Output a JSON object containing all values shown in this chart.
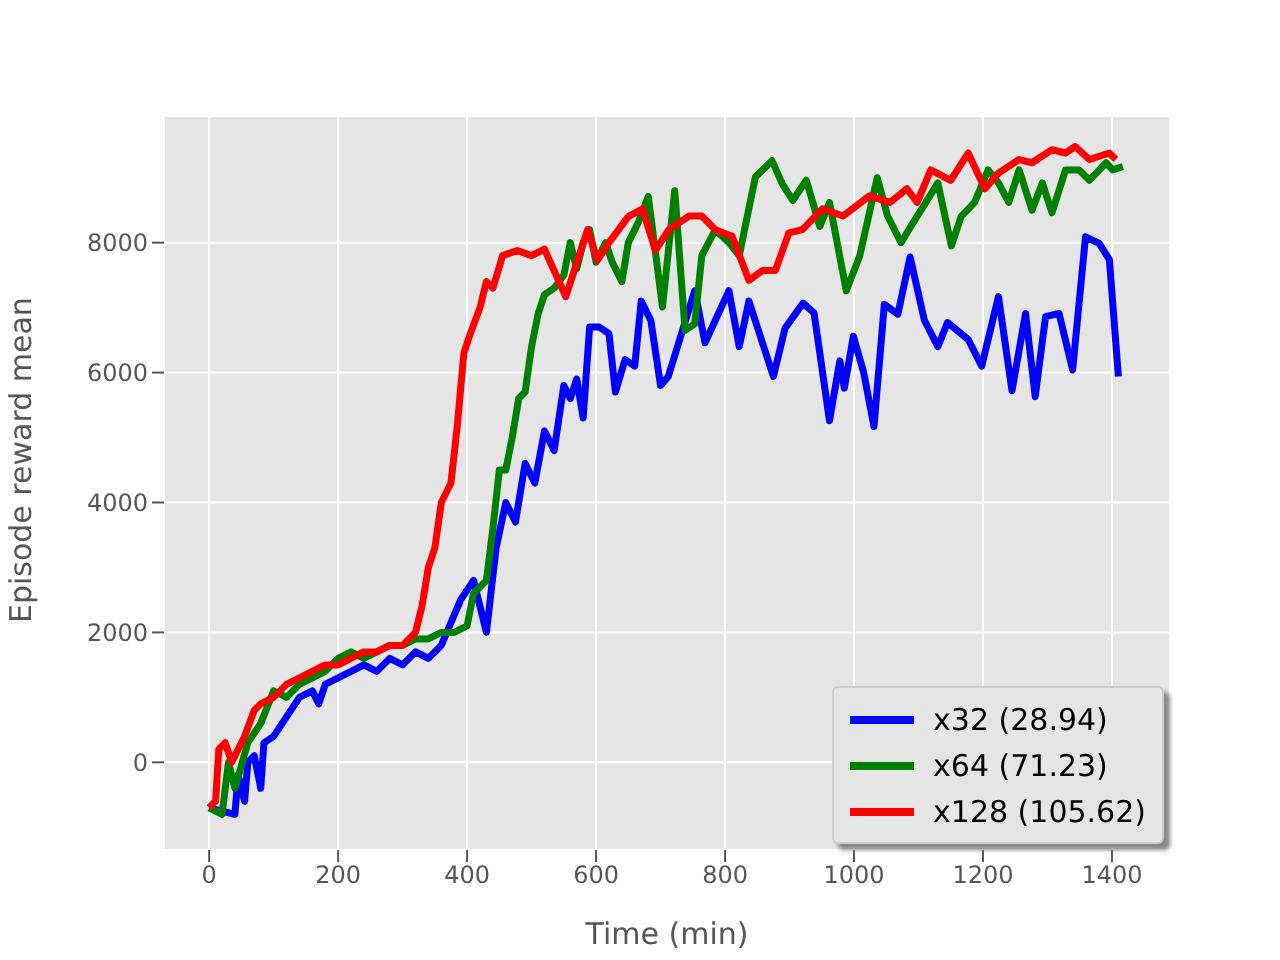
{
  "chart_data": {
    "type": "line",
    "xlabel": "Time (min)",
    "ylabel": "Episode reward mean",
    "xlim": [
      -70,
      1490
    ],
    "ylim": [
      -1350,
      9950
    ],
    "xticks": [
      0,
      200,
      400,
      600,
      800,
      1000,
      1200,
      1400
    ],
    "yticks": [
      0,
      2000,
      4000,
      6000,
      8000
    ],
    "grid": true,
    "legend": "bottom right",
    "marker": "none",
    "line_style": "solid",
    "series": [
      {
        "name": "x32 (28.94)",
        "color": "#0000ff",
        "x": [
          0,
          20,
          40,
          45,
          55,
          60,
          70,
          80,
          85,
          100,
          120,
          140,
          160,
          170,
          180,
          200,
          220,
          240,
          260,
          280,
          300,
          320,
          340,
          360,
          390,
          410,
          430,
          445,
          460,
          475,
          490,
          505,
          520,
          535,
          550,
          560,
          570,
          580,
          590,
          605,
          620,
          630,
          645,
          660,
          670,
          685,
          700,
          712,
          753,
          769,
          806,
          822,
          837,
          875,
          893,
          921,
          938,
          962,
          978,
          985,
          999,
          1015,
          1031,
          1047,
          1068,
          1087,
          1109,
          1130,
          1145,
          1177,
          1198,
          1224,
          1245,
          1266,
          1281,
          1297,
          1318,
          1339,
          1359,
          1380,
          1396,
          1410
        ],
        "values": [
          -700,
          -750,
          -800,
          -200,
          -600,
          0,
          100,
          -400,
          300,
          400,
          700,
          1000,
          1100,
          900,
          1200,
          1300,
          1400,
          1500,
          1400,
          1600,
          1500,
          1700,
          1600,
          1800,
          2500,
          2800,
          2000,
          3300,
          4000,
          3700,
          4600,
          4300,
          5100,
          4800,
          5800,
          5600,
          5900,
          5300,
          6700,
          6700,
          6600,
          5700,
          6200,
          6100,
          7100,
          6800,
          5800,
          5940,
          7260,
          6460,
          7260,
          6400,
          7100,
          5940,
          6680,
          7070,
          6920,
          5260,
          6180,
          5760,
          6560,
          6000,
          5170,
          7050,
          6900,
          7780,
          6810,
          6400,
          6770,
          6510,
          6100,
          7170,
          5720,
          6910,
          5630,
          6860,
          6910,
          6040,
          8090,
          7990,
          7740,
          5940
        ]
      },
      {
        "name": "x64 (71.23)",
        "color": "#008000",
        "x": [
          0,
          20,
          30,
          40,
          60,
          80,
          100,
          120,
          140,
          160,
          180,
          200,
          220,
          240,
          260,
          280,
          300,
          320,
          340,
          360,
          380,
          400,
          410,
          430,
          440,
          450,
          460,
          470,
          480,
          490,
          500,
          510,
          520,
          535,
          550,
          560,
          570,
          580,
          590,
          600,
          615,
          625,
          640,
          650,
          665,
          681,
          703,
          722,
          738,
          753,
          764,
          785,
          806,
          822,
          847,
          873,
          889,
          905,
          926,
          947,
          962,
          988,
          1009,
          1036,
          1052,
          1073,
          1088,
          1104,
          1130,
          1151,
          1166,
          1187,
          1208,
          1224,
          1240,
          1256,
          1276,
          1292,
          1307,
          1328,
          1349,
          1365,
          1391,
          1401,
          1417
        ],
        "values": [
          -700,
          -800,
          0,
          -400,
          300,
          600,
          1100,
          1000,
          1200,
          1300,
          1400,
          1600,
          1700,
          1600,
          1700,
          1800,
          1800,
          1900,
          1900,
          2000,
          2000,
          2100,
          2600,
          2800,
          3600,
          4500,
          4500,
          5000,
          5600,
          5700,
          6400,
          6900,
          7200,
          7300,
          7500,
          8000,
          7600,
          8000,
          8200,
          7700,
          8000,
          7700,
          7400,
          8000,
          8300,
          8710,
          7010,
          8800,
          6650,
          6750,
          7800,
          8200,
          8000,
          7800,
          9010,
          9260,
          8900,
          8650,
          8960,
          8250,
          8620,
          7260,
          7800,
          9000,
          8410,
          8000,
          8250,
          8500,
          8920,
          7950,
          8400,
          8620,
          9120,
          8920,
          8620,
          9120,
          8500,
          8920,
          8460,
          9120,
          9120,
          8960,
          9230,
          9120,
          9170
        ]
      },
      {
        "name": "x128 (105.62)",
        "color": "#ff0000",
        "x": [
          0,
          10,
          15,
          25,
          35,
          45,
          55,
          70,
          80,
          100,
          120,
          140,
          160,
          180,
          200,
          220,
          240,
          260,
          280,
          300,
          320,
          330,
          340,
          350,
          360,
          375,
          385,
          395,
          405,
          420,
          430,
          440,
          455,
          478,
          500,
          520,
          553,
          587,
          602,
          620,
          650,
          672,
          692,
          713,
          744,
          764,
          785,
          811,
          837,
          858,
          878,
          899,
          920,
          951,
          983,
          1024,
          1056,
          1082,
          1098,
          1119,
          1150,
          1177,
          1203,
          1224,
          1256,
          1276,
          1307,
          1328,
          1343,
          1365,
          1396,
          1406
        ],
        "values": [
          -700,
          -600,
          200,
          300,
          0,
          200,
          400,
          800,
          900,
          1000,
          1200,
          1300,
          1400,
          1500,
          1500,
          1600,
          1700,
          1700,
          1800,
          1800,
          2000,
          2400,
          3000,
          3300,
          4000,
          4300,
          5200,
          6300,
          6600,
          7000,
          7400,
          7300,
          7800,
          7880,
          7800,
          7900,
          7170,
          8200,
          7730,
          8000,
          8400,
          8520,
          7880,
          8200,
          8410,
          8410,
          8200,
          8100,
          7420,
          7570,
          7570,
          8150,
          8200,
          8520,
          8410,
          8720,
          8620,
          8830,
          8620,
          9120,
          8960,
          9380,
          8830,
          9070,
          9280,
          9230,
          9430,
          9380,
          9480,
          9280,
          9380,
          9280
        ]
      }
    ]
  }
}
